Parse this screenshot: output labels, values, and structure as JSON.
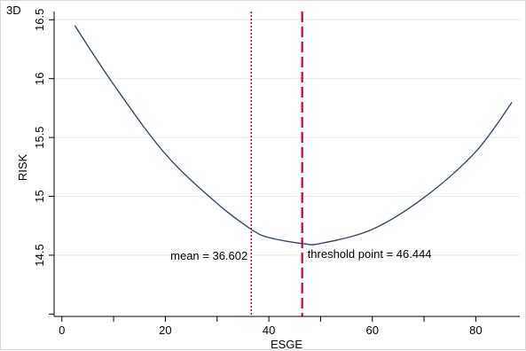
{
  "panel_tag": "3D",
  "chart_data": {
    "type": "line",
    "xlabel": "ESGE",
    "ylabel": "RISK",
    "xlim": [
      -1.5,
      88.5
    ],
    "ylim": [
      13.98,
      16.57
    ],
    "x_ticks": [
      0,
      20,
      40,
      60,
      80
    ],
    "x_tick_labels": [
      "0",
      "20",
      "40",
      "60",
      "80"
    ],
    "x_minor_ticks": [
      10,
      30,
      50,
      70
    ],
    "y_ticks": [
      14.5,
      15,
      15.5,
      16,
      16.5
    ],
    "y_tick_labels": [
      "14.5",
      "15",
      "15.5",
      "16",
      "16.5"
    ],
    "y_minor_ticks": [
      14.0
    ],
    "grid": "horizontal",
    "series": [
      {
        "x": [
          2.5,
          10,
          20,
          30,
          36.602,
          40,
          46.444,
          50,
          60,
          70,
          80,
          87
        ],
        "y": [
          16.45,
          15.95,
          15.36,
          14.94,
          14.72,
          14.65,
          14.6,
          14.6,
          14.72,
          14.99,
          15.38,
          15.8
        ]
      }
    ],
    "vlines": [
      {
        "x": 36.602,
        "style": "dotted",
        "color": "#cc0033",
        "label": "mean = 36.602"
      },
      {
        "x": 46.444,
        "style": "dashed",
        "color": "#cc0033",
        "label": "threshold point = 46.444"
      }
    ]
  }
}
